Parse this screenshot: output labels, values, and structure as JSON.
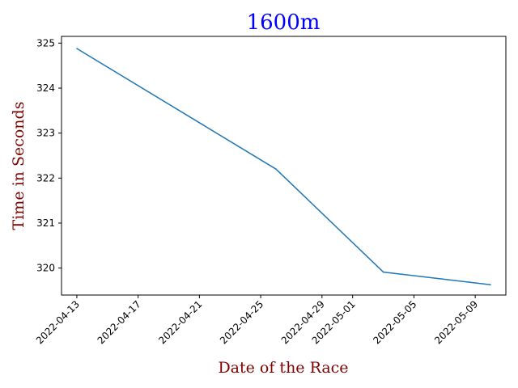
{
  "chart_data": {
    "type": "line",
    "title": "1600m",
    "xlabel": "Date of the Race",
    "ylabel": "Time in Seconds",
    "series": [
      {
        "x": [
          "2022-04-13",
          "2022-04-26",
          "2022-05-03",
          "2022-05-10"
        ],
        "y": [
          324.88,
          322.2,
          319.91,
          319.63
        ]
      }
    ],
    "xticks": [
      "2022-04-13",
      "2022-04-17",
      "2022-04-21",
      "2022-04-25",
      "2022-04-29",
      "2022-05-01",
      "2022-05-05",
      "2022-05-09"
    ],
    "yticks": [
      320,
      321,
      322,
      323,
      324,
      325
    ],
    "xlim": [
      "2022-04-12",
      "2022-05-11"
    ],
    "ylim": [
      319.4,
      325.15
    ],
    "grid": false,
    "colors": {
      "line": "#1f77b4",
      "title": "#0000ff",
      "axis_label": "#800000"
    }
  }
}
